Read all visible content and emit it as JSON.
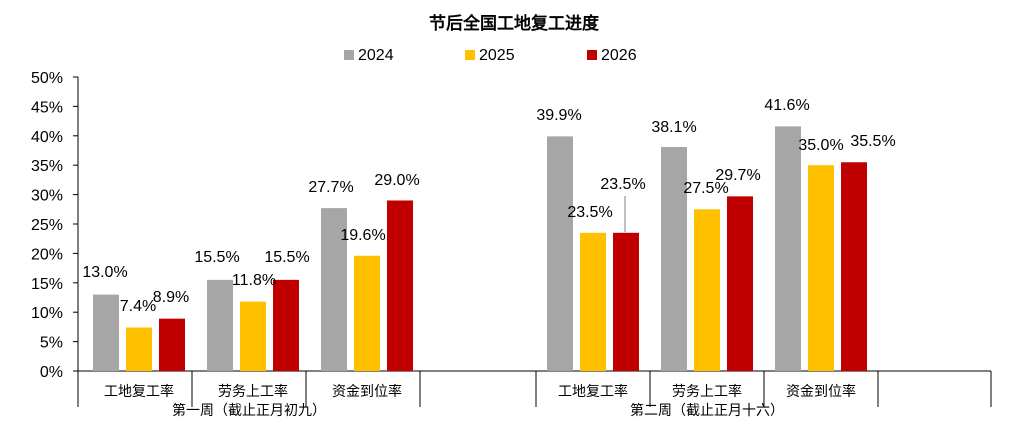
{
  "chart_data": {
    "type": "bar",
    "title": "节后全国工地复工进度",
    "groups": [
      {
        "label": "第一周（截止正月初九）",
        "categories": [
          "工地复工率",
          "劳务上工率",
          "资金到位率"
        ]
      },
      {
        "label": "第二周（截止正月十六）",
        "categories": [
          "工地复工率",
          "劳务上工率",
          "资金到位率"
        ]
      }
    ],
    "categories": [
      "工地复工率",
      "劳务上工率",
      "资金到位率",
      "工地复工率",
      "劳务上工率",
      "资金到位率"
    ],
    "series": [
      {
        "name": "2024",
        "color": "#a6a6a6",
        "values": [
          13.0,
          15.5,
          27.7,
          39.9,
          38.1,
          41.6
        ],
        "labels": [
          "13.0%",
          "15.5%",
          "27.7%",
          "39.9%",
          "38.1%",
          "41.6%"
        ]
      },
      {
        "name": "2025",
        "color": "#ffc000",
        "values": [
          7.4,
          11.8,
          19.6,
          23.5,
          27.5,
          35.0
        ],
        "labels": [
          "7.4%",
          "11.8%",
          "19.6%",
          "23.5%",
          "27.5%",
          "35.0%"
        ]
      },
      {
        "name": "2026",
        "color": "#c00000",
        "values": [
          8.9,
          15.5,
          29.0,
          23.5,
          29.7,
          35.5
        ],
        "labels": [
          "8.9%",
          "15.5%",
          "29.0%",
          "23.5%",
          "29.7%",
          "35.5%"
        ]
      }
    ],
    "ylim": [
      0,
      50
    ],
    "yticks": [
      "0%",
      "5%",
      "10%",
      "15%",
      "20%",
      "25%",
      "30%",
      "35%",
      "40%",
      "45%",
      "50%"
    ],
    "ytick_values": [
      0,
      5,
      10,
      15,
      20,
      25,
      30,
      35,
      40,
      45,
      50
    ],
    "legend_position": "top-center",
    "grid": false
  }
}
